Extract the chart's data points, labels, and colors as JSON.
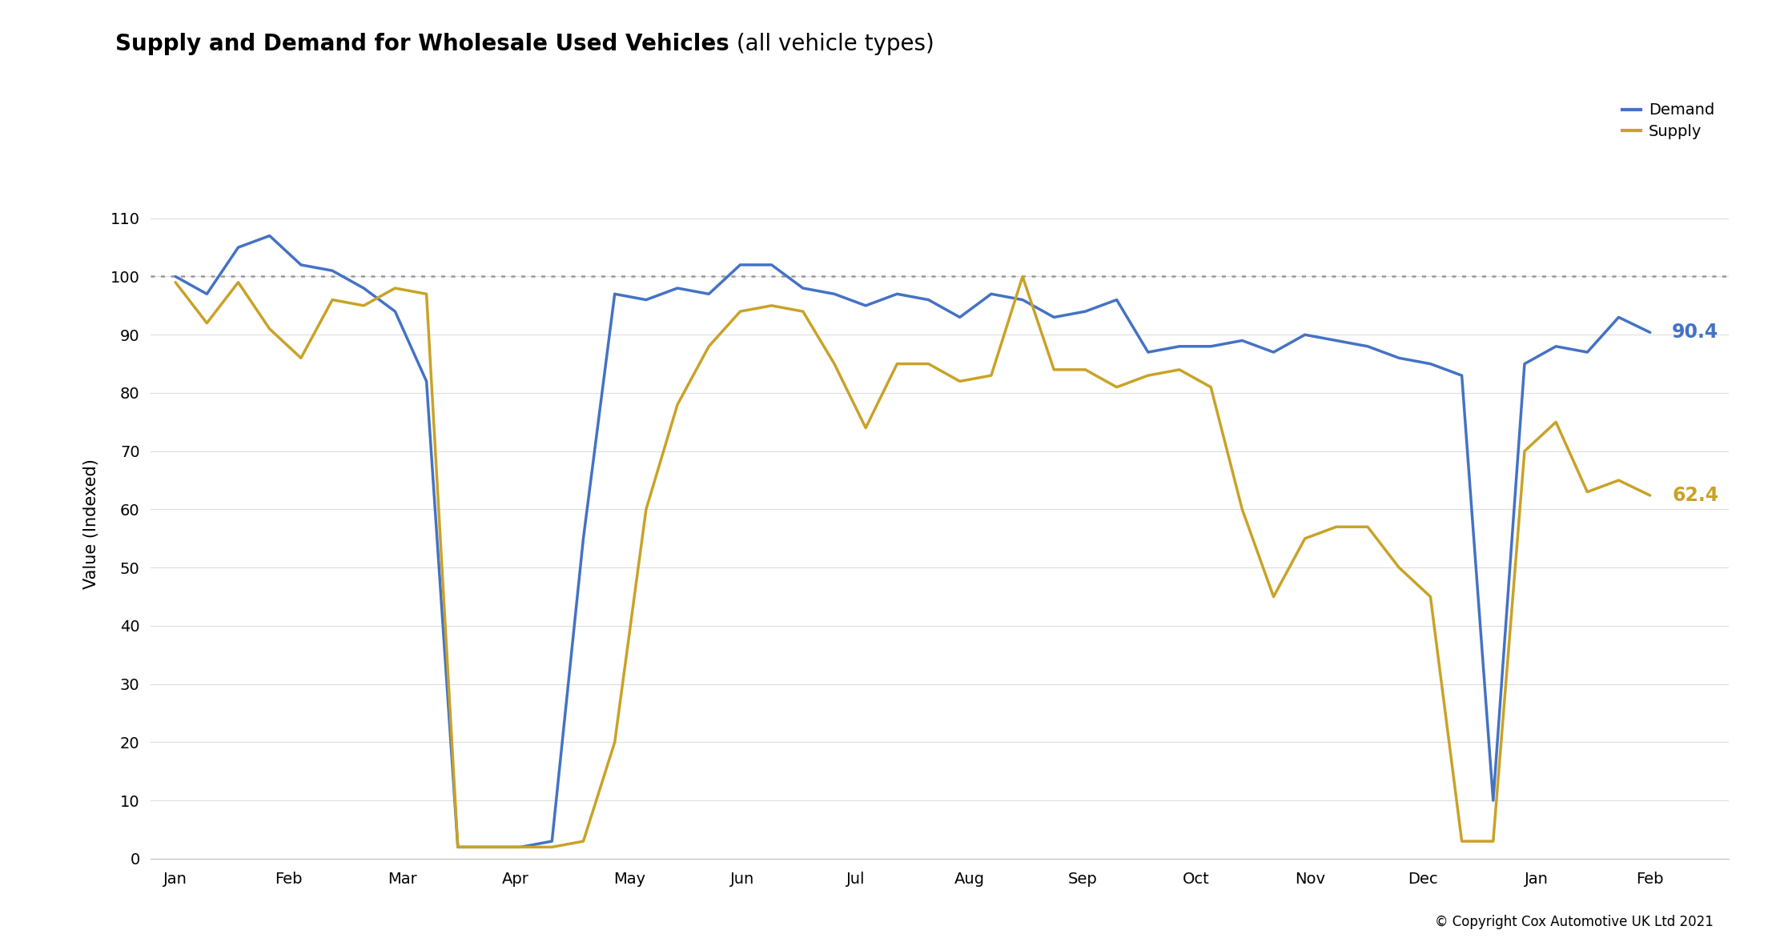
{
  "title_bold": "Supply and Demand for Wholesale Used Vehicles",
  "title_light": " (all vehicle types)",
  "ylabel": "Value (Indexed)",
  "ylim": [
    0,
    115
  ],
  "yticks": [
    0,
    10,
    20,
    30,
    40,
    50,
    60,
    70,
    80,
    90,
    100,
    110
  ],
  "hline_y": 100,
  "demand_color": "#4472C4",
  "supply_color": "#C9A227",
  "background_color": "#FFFFFF",
  "plot_bg_color": "#FFFFFF",
  "copyright_text": "© Copyright Cox Automotive UK Ltd 2021",
  "legend_demand": "Demand",
  "legend_supply": "Supply",
  "end_label_demand": "90.4",
  "end_label_supply": "62.4",
  "x_labels": [
    "Jan",
    "Feb",
    "Mar",
    "Apr",
    "May",
    "Jun",
    "Jul",
    "Aug",
    "Sep",
    "Oct",
    "Nov",
    "Dec",
    "Jan",
    "Feb"
  ],
  "demand": [
    100,
    97,
    105,
    107,
    102,
    101,
    98,
    94,
    82,
    2,
    2,
    2,
    3,
    55,
    97,
    96,
    98,
    97,
    102,
    102,
    98,
    97,
    95,
    97,
    96,
    93,
    97,
    96,
    93,
    94,
    96,
    87,
    88,
    88,
    89,
    87,
    90,
    89,
    88,
    86,
    85,
    83,
    10,
    85,
    88,
    87,
    93,
    90.4
  ],
  "supply": [
    99,
    92,
    99,
    91,
    86,
    96,
    95,
    98,
    97,
    2,
    2,
    2,
    2,
    3,
    20,
    60,
    78,
    88,
    94,
    95,
    94,
    85,
    74,
    85,
    85,
    82,
    83,
    100,
    84,
    84,
    81,
    83,
    84,
    81,
    60,
    45,
    55,
    57,
    57,
    50,
    45,
    3,
    3,
    70,
    75,
    63,
    65,
    62.4
  ],
  "n_points": 48
}
